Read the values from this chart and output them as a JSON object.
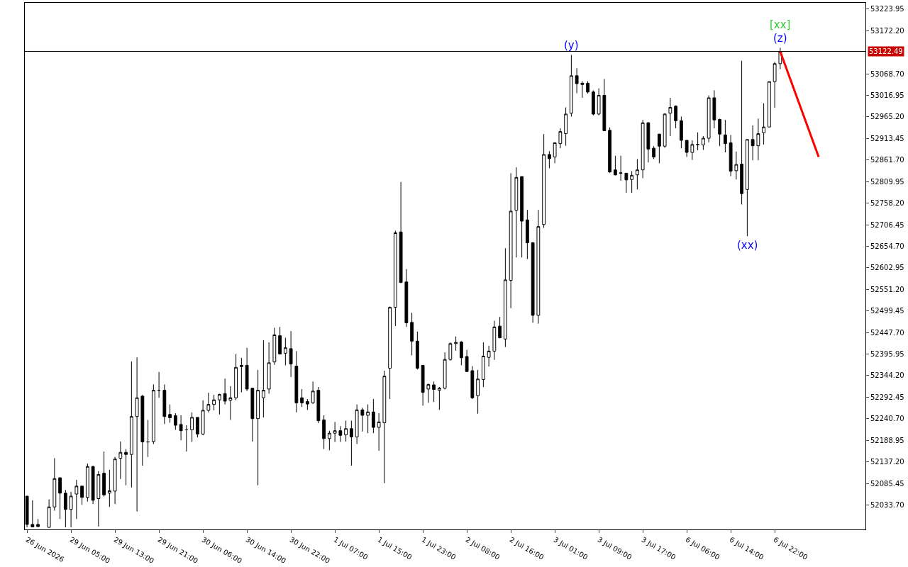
{
  "chart_data": {
    "type": "candlestick",
    "categories": [
      "26 Jun 2026",
      null,
      null,
      null,
      null,
      null,
      null,
      null,
      "29 Jun 05:00",
      null,
      null,
      null,
      null,
      null,
      null,
      null,
      "29 Jun 13:00",
      null,
      null,
      null,
      null,
      null,
      null,
      null,
      "29 Jun 21:00",
      null,
      null,
      null,
      null,
      null,
      null,
      null,
      "30 Jun 06:00",
      null,
      null,
      null,
      null,
      null,
      null,
      null,
      "30 Jun 14:00",
      null,
      null,
      null,
      null,
      null,
      null,
      null,
      "30 Jun 22:00",
      null,
      null,
      null,
      null,
      null,
      null,
      null,
      "1 Jul 07:00",
      null,
      null,
      null,
      null,
      null,
      null,
      null,
      "1 Jul 15:00",
      null,
      null,
      null,
      null,
      null,
      null,
      null,
      "1 Jul 23:00",
      null,
      null,
      null,
      null,
      null,
      null,
      null,
      "2 Jul 08:00",
      null,
      null,
      null,
      null,
      null,
      null,
      null,
      "2 Jul 16:00",
      null,
      null,
      null,
      null,
      null,
      null,
      null,
      "3 Jul 01:00",
      null,
      null,
      null,
      null,
      null,
      null,
      null,
      "3 Jul 09:00",
      null,
      null,
      null,
      null,
      null,
      null,
      null,
      "3 Jul 17:00",
      null,
      null,
      null,
      null,
      null,
      null,
      null,
      "6 Jul 06:00",
      null,
      null,
      null,
      null,
      null,
      null,
      null,
      "6 Jul 14:00",
      null,
      null,
      null,
      null,
      null,
      null,
      null,
      "6 Jul 22:00",
      null,
      null,
      null,
      null,
      null,
      null,
      null,
      null,
      null,
      null,
      null,
      null,
      null,
      null,
      null,
      null
    ],
    "ohlc": [
      [
        52055,
        52055,
        51980,
        51987
      ],
      [
        51987,
        52045,
        51980,
        51981
      ],
      [
        51987,
        52000,
        51980,
        51982
      ],
      null,
      [
        51980,
        52047,
        51980,
        52029
      ],
      [
        52029,
        52146,
        52020,
        52097
      ],
      [
        52099,
        52100,
        52000,
        52062
      ],
      [
        52062,
        52070,
        51980,
        52023
      ],
      [
        52023,
        52065,
        51980,
        52055
      ],
      [
        52060,
        52094,
        52000,
        52079
      ],
      [
        52079,
        52079,
        52034,
        52052
      ],
      [
        52052,
        52133,
        52042,
        52126
      ],
      [
        52126,
        52128,
        52036,
        52045
      ],
      [
        52049,
        52115,
        51982,
        52107
      ],
      [
        52110,
        52162,
        52054,
        52058
      ],
      [
        52062,
        52118,
        52029,
        52068
      ],
      [
        52067,
        52149,
        52036,
        52144
      ],
      [
        52146,
        52186,
        52096,
        52160
      ],
      [
        52160,
        52168,
        52081,
        52155
      ],
      [
        52155,
        52378,
        52076,
        52246
      ],
      [
        52246,
        52388,
        52018,
        52291
      ],
      [
        52295,
        52298,
        52128,
        52185
      ],
      [
        52185,
        52238,
        52149,
        52185
      ],
      [
        52186,
        52323,
        52180,
        52309
      ],
      [
        52309,
        52353,
        52291,
        52309
      ],
      [
        52309,
        52323,
        52228,
        52246
      ],
      [
        52251,
        52275,
        52231,
        52243
      ],
      [
        52248,
        52254,
        52214,
        52225
      ],
      [
        52227,
        52249,
        52189,
        52212
      ],
      [
        52214,
        52225,
        52162,
        52214
      ],
      [
        52214,
        52256,
        52185,
        52244
      ],
      [
        52244,
        52244,
        52196,
        52204
      ],
      [
        52204,
        52285,
        52201,
        52261
      ],
      [
        52261,
        52303,
        52256,
        52275
      ],
      [
        52275,
        52298,
        52261,
        52286
      ],
      [
        52286,
        52301,
        52251,
        52299
      ],
      [
        52301,
        52337,
        52275,
        52283
      ],
      [
        52285,
        52319,
        52238,
        52291
      ],
      [
        52291,
        52396,
        52285,
        52364
      ],
      [
        52369,
        52387,
        52304,
        52366
      ],
      [
        52369,
        52411,
        52307,
        52312
      ],
      [
        52314,
        52314,
        52186,
        52241
      ],
      [
        52241,
        52358,
        52081,
        52309
      ],
      [
        52291,
        52429,
        52244,
        52309
      ],
      [
        52312,
        52424,
        52301,
        52375
      ],
      [
        52377,
        52459,
        52370,
        52442
      ],
      [
        52440,
        52461,
        52395,
        52396
      ],
      [
        52398,
        52435,
        52369,
        52411
      ],
      [
        52409,
        52451,
        52341,
        52372
      ],
      [
        52367,
        52403,
        52256,
        52279
      ],
      [
        52291,
        52312,
        52269,
        52279
      ],
      [
        52282,
        52288,
        52262,
        52276
      ],
      [
        52279,
        52330,
        52276,
        52307
      ],
      [
        52309,
        52317,
        52230,
        52236
      ],
      [
        52238,
        52249,
        52168,
        52193
      ],
      [
        52193,
        52212,
        52165,
        52206
      ],
      [
        52206,
        52233,
        52185,
        52212
      ],
      [
        52212,
        52223,
        52185,
        52201
      ],
      [
        52202,
        52236,
        52186,
        52217
      ],
      [
        52217,
        52236,
        52128,
        52197
      ],
      [
        52197,
        52275,
        52180,
        52262
      ],
      [
        52262,
        52267,
        52210,
        52249
      ],
      [
        52249,
        52275,
        52206,
        52257
      ],
      [
        52257,
        52288,
        52206,
        52220
      ],
      [
        52220,
        52254,
        52164,
        52233
      ],
      [
        52231,
        52356,
        52086,
        52343
      ],
      [
        52362,
        52510,
        52288,
        52508
      ],
      [
        52508,
        52692,
        52463,
        52687
      ],
      [
        52689,
        52809,
        52566,
        52568
      ],
      [
        52569,
        52600,
        52461,
        52471
      ],
      [
        52472,
        52495,
        52393,
        52427
      ],
      [
        52427,
        52450,
        52359,
        52362
      ],
      [
        52369,
        52369,
        52272,
        52304
      ],
      [
        52312,
        52325,
        52279,
        52323
      ],
      [
        52322,
        52330,
        52281,
        52311
      ],
      [
        52309,
        52317,
        52262,
        52314
      ],
      [
        52314,
        52400,
        52311,
        52383
      ],
      [
        52383,
        52424,
        52380,
        52421
      ],
      [
        52421,
        52438,
        52404,
        52424
      ],
      [
        52425,
        52427,
        52369,
        52387
      ],
      [
        52390,
        52406,
        52354,
        52354
      ],
      [
        52356,
        52367,
        52288,
        52291
      ],
      [
        52296,
        52358,
        52253,
        52336
      ],
      [
        52335,
        52424,
        52317,
        52391
      ],
      [
        52388,
        52416,
        52366,
        52403
      ],
      [
        52403,
        52476,
        52382,
        52461
      ],
      [
        52463,
        52485,
        52434,
        52435
      ],
      [
        52432,
        52650,
        52413,
        52574
      ],
      [
        52573,
        52830,
        52506,
        52739
      ],
      [
        52741,
        52844,
        52628,
        52820
      ],
      [
        52822,
        52822,
        52628,
        52715
      ],
      [
        52718,
        52742,
        52624,
        52663
      ],
      [
        52663,
        52665,
        52471,
        52489
      ],
      [
        52489,
        52742,
        52469,
        52702
      ],
      [
        52707,
        52924,
        52699,
        52875
      ],
      [
        52875,
        52883,
        52842,
        52865
      ],
      [
        52869,
        52904,
        52854,
        52903
      ],
      [
        52901,
        52938,
        52890,
        52930
      ],
      [
        52925,
        52988,
        52896,
        52972
      ],
      [
        52974,
        53114,
        52966,
        53064
      ],
      [
        53064,
        53082,
        53022,
        53045
      ],
      [
        53046,
        53051,
        53011,
        53043
      ],
      [
        53046,
        53051,
        53021,
        53025
      ],
      [
        53025,
        53029,
        52969,
        52972
      ],
      [
        52972,
        53034,
        52969,
        53017
      ],
      [
        53017,
        53056,
        52932,
        52932
      ],
      [
        52933,
        52940,
        52831,
        52833
      ],
      [
        52838,
        52872,
        52825,
        52826
      ],
      [
        52831,
        52872,
        52812,
        52830
      ],
      [
        52830,
        52830,
        52783,
        52814
      ],
      [
        52815,
        52835,
        52783,
        52825
      ],
      [
        52826,
        52864,
        52791,
        52838
      ],
      [
        52838,
        52958,
        52818,
        52951
      ],
      [
        52951,
        52953,
        52856,
        52888
      ],
      [
        52890,
        52895,
        52864,
        52869
      ],
      [
        52924,
        52924,
        52854,
        52895
      ],
      [
        52895,
        52974,
        52891,
        52972
      ],
      [
        52974,
        53011,
        52919,
        52988
      ],
      [
        52991,
        52993,
        52938,
        52956
      ],
      [
        52956,
        52966,
        52890,
        52909
      ],
      [
        52909,
        52909,
        52869,
        52880
      ],
      [
        52880,
        52909,
        52862,
        52899
      ],
      [
        52899,
        52928,
        52885,
        52898
      ],
      [
        52898,
        52919,
        52886,
        52914
      ],
      [
        52914,
        53017,
        52904,
        53011
      ],
      [
        53011,
        53029,
        52938,
        52958
      ],
      [
        52959,
        52961,
        52895,
        52924
      ],
      [
        52922,
        52958,
        52880,
        52901
      ],
      [
        52903,
        52922,
        52823,
        52835
      ],
      [
        52836,
        52882,
        52815,
        52851
      ],
      [
        52852,
        53100,
        52755,
        52781
      ],
      [
        52791,
        52911,
        52679,
        52911
      ],
      [
        52911,
        52945,
        52861,
        52896
      ],
      [
        52896,
        52961,
        52861,
        52925
      ],
      [
        52927,
        52998,
        52899,
        52941
      ],
      [
        52941,
        53050,
        52941,
        53050
      ],
      [
        53050,
        53097,
        52987,
        53093
      ],
      [
        53093,
        53131,
        53080,
        53122
      ],
      null,
      null,
      null,
      null,
      null,
      null,
      null,
      null,
      null,
      null,
      null,
      null,
      null,
      null,
      null
    ],
    "series": [
      {
        "type": "line",
        "color": "#ff0000",
        "values": [
          null,
          null,
          null,
          null,
          null,
          null,
          null,
          null,
          null,
          null,
          null,
          null,
          null,
          null,
          null,
          null,
          null,
          null,
          null,
          null,
          null,
          null,
          null,
          null,
          null,
          null,
          null,
          null,
          null,
          null,
          null,
          null,
          null,
          null,
          null,
          null,
          null,
          null,
          null,
          null,
          null,
          null,
          null,
          null,
          null,
          null,
          null,
          null,
          null,
          null,
          null,
          null,
          null,
          null,
          null,
          null,
          null,
          null,
          null,
          null,
          null,
          null,
          null,
          null,
          null,
          null,
          null,
          null,
          null,
          null,
          null,
          null,
          null,
          null,
          null,
          null,
          null,
          null,
          null,
          null,
          null,
          null,
          null,
          null,
          null,
          null,
          null,
          null,
          null,
          null,
          null,
          null,
          null,
          null,
          null,
          null,
          null,
          null,
          null,
          null,
          null,
          null,
          null,
          null,
          null,
          null,
          null,
          null,
          null,
          null,
          null,
          null,
          null,
          null,
          null,
          null,
          null,
          null,
          null,
          null,
          null,
          null,
          null,
          null,
          null,
          null,
          null,
          null,
          null,
          null,
          null,
          null,
          null,
          null,
          null,
          null,
          null,
          53122,
          null,
          null,
          null,
          null,
          null,
          null,
          52869,
          null,
          null,
          null,
          null,
          null,
          null,
          null,
          null
        ]
      }
    ],
    "ylim": [
      51975,
      53239
    ],
    "yticks": [
      {
        "value": 53223.95,
        "label": "53223.95"
      },
      {
        "value": 53172.2,
        "label": "53172.20"
      },
      {
        "value": 53068.7,
        "label": "53068.70"
      },
      {
        "value": 53016.95,
        "label": "53016.95"
      },
      {
        "value": 52965.2,
        "label": "52965.20"
      },
      {
        "value": 52913.45,
        "label": "52913.45"
      },
      {
        "value": 52861.7,
        "label": "52861.70"
      },
      {
        "value": 52809.95,
        "label": "52809.95"
      },
      {
        "value": 52758.2,
        "label": "52758.20"
      },
      {
        "value": 52706.45,
        "label": "52706.45"
      },
      {
        "value": 52654.7,
        "label": "52654.70"
      },
      {
        "value": 52602.95,
        "label": "52602.95"
      },
      {
        "value": 52551.2,
        "label": "52551.20"
      },
      {
        "value": 52499.45,
        "label": "52499.45"
      },
      {
        "value": 52447.7,
        "label": "52447.70"
      },
      {
        "value": 52395.95,
        "label": "52395.95"
      },
      {
        "value": 52344.2,
        "label": "52344.20"
      },
      {
        "value": 52292.45,
        "label": "52292.45"
      },
      {
        "value": 52240.7,
        "label": "52240.70"
      },
      {
        "value": 52188.95,
        "label": "52188.95"
      },
      {
        "value": 52137.2,
        "label": "52137.20"
      },
      {
        "value": 52085.45,
        "label": "52085.45"
      },
      {
        "value": 52033.7,
        "label": "52033.70"
      }
    ],
    "ref_lines": [
      {
        "axis": "y",
        "value": 53122.49,
        "label": "53122.49",
        "color": "#000000"
      }
    ],
    "annotations": [
      {
        "text": "(y)",
        "y": 53114
      },
      {
        "text": "(z)",
        "y": 53131
      },
      {
        "text": "[xx]",
        "y": 53131
      },
      {
        "text": "(xx)",
        "y": 52679
      }
    ]
  }
}
